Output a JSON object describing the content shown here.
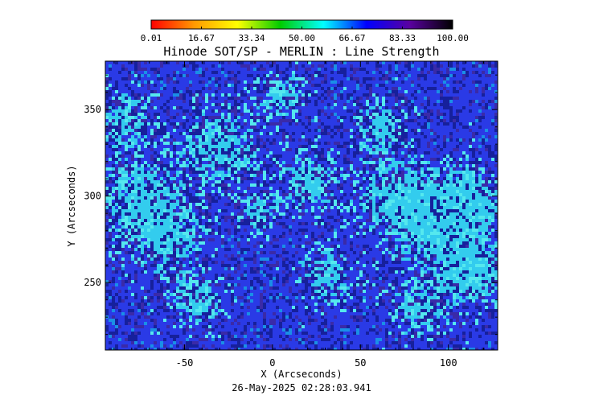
{
  "chart_data": {
    "type": "heatmap",
    "title": "Hinode SOT/SP - MERLIN : Line Strength",
    "xlabel": "X (Arcseconds)",
    "ylabel": "Y (Arcseconds)",
    "xlim": [
      -95,
      128
    ],
    "ylim": [
      211,
      378
    ],
    "x_ticks": [
      -50,
      0,
      50,
      100
    ],
    "y_ticks": [
      250,
      300,
      350
    ],
    "x_tick_labels": [
      "-50",
      "0",
      "50",
      "100"
    ],
    "y_tick_labels": [
      "250",
      "300",
      "350"
    ],
    "colorbar": {
      "min": 0.01,
      "max": 100.0,
      "tick_labels": [
        "0.01",
        "16.67",
        "33.34",
        "50.00",
        "66.67",
        "83.33",
        "100.00"
      ],
      "colors": [
        "#ff0000",
        "#ff9900",
        "#ffff00",
        "#00cc00",
        "#00ffff",
        "#0000ff",
        "#5a00a0",
        "#000000"
      ]
    },
    "timestamp": "26-May-2025 02:28:03.941"
  }
}
